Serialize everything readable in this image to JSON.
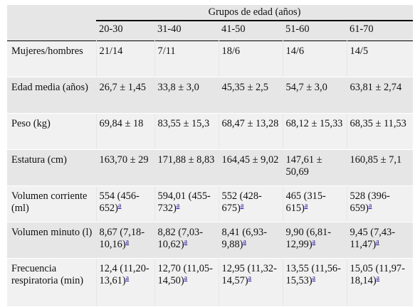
{
  "table": {
    "group_header": "Grupos de edad (años)",
    "age_groups": [
      "20-30",
      "31-40",
      "41-50",
      "51-60",
      "61-70"
    ],
    "footnote_marker": "a",
    "rows": [
      {
        "label": "Mujeres/hombres",
        "cells": [
          {
            "text": "21/14"
          },
          {
            "text": "7/11"
          },
          {
            "text": "18/6"
          },
          {
            "text": "14/6"
          },
          {
            "text": "14/5"
          }
        ]
      },
      {
        "label": "Edad media (años)",
        "cells": [
          {
            "text": "26,7 ± 1,45"
          },
          {
            "text": "33,8 ± 3,0"
          },
          {
            "text": "45,35 ± 2,5"
          },
          {
            "text": "54,7 ± 3,0"
          },
          {
            "text": "63,81 ± 2,74"
          }
        ]
      },
      {
        "label": "Peso (kg)",
        "cells": [
          {
            "text": "69,84 ± 18"
          },
          {
            "text": "83,55 ± 15,3"
          },
          {
            "text": "68,47 ± 13,28"
          },
          {
            "text": "68,12 ± 15,33"
          },
          {
            "text": "68,35 ± 11,53"
          }
        ]
      },
      {
        "label": "Estatura (cm)",
        "cells": [
          {
            "text": "163,70 ± 29"
          },
          {
            "text": "171,88 ± 8,83"
          },
          {
            "text": "164,45 ± 9,02"
          },
          {
            "text": "147,61 ± 50,69"
          },
          {
            "text": "160,85 ± 7,1"
          }
        ]
      },
      {
        "label": "Volumen corriente (ml)",
        "cells": [
          {
            "text": "554 (456-652)",
            "sup": true
          },
          {
            "text": "594,01 (455-732)",
            "sup": true
          },
          {
            "text": "552 (428-675)",
            "sup": true
          },
          {
            "text": "465 (315-615)",
            "sup": true
          },
          {
            "text": "528 (396-659)",
            "sup": true
          }
        ]
      },
      {
        "label": "Volumen minuto (l)",
        "cells": [
          {
            "text": "8,67 (7,18-10,16)",
            "sup": true
          },
          {
            "text": "8,82 (7,03-10,62)",
            "sup": true
          },
          {
            "text": "8,41 (6,93-9,88)",
            "sup": true
          },
          {
            "text": "9,90 (6,81-12,99)",
            "sup": true
          },
          {
            "text": "9,45 (7,43-11,47)",
            "sup": true
          }
        ]
      },
      {
        "label": "Frecuencia respiratoria (min)",
        "cells": [
          {
            "text": "12,4 (11,20-13,61)",
            "sup": true
          },
          {
            "text": "12,70 (11,05-14,50)",
            "sup": true
          },
          {
            "text": "12,95 (11,32-14,57)",
            "sup": true
          },
          {
            "text": "13,55 (11,56-15,53)",
            "sup": true
          },
          {
            "text": "15,05 (11,97-18,14)",
            "sup": true
          }
        ]
      }
    ]
  }
}
